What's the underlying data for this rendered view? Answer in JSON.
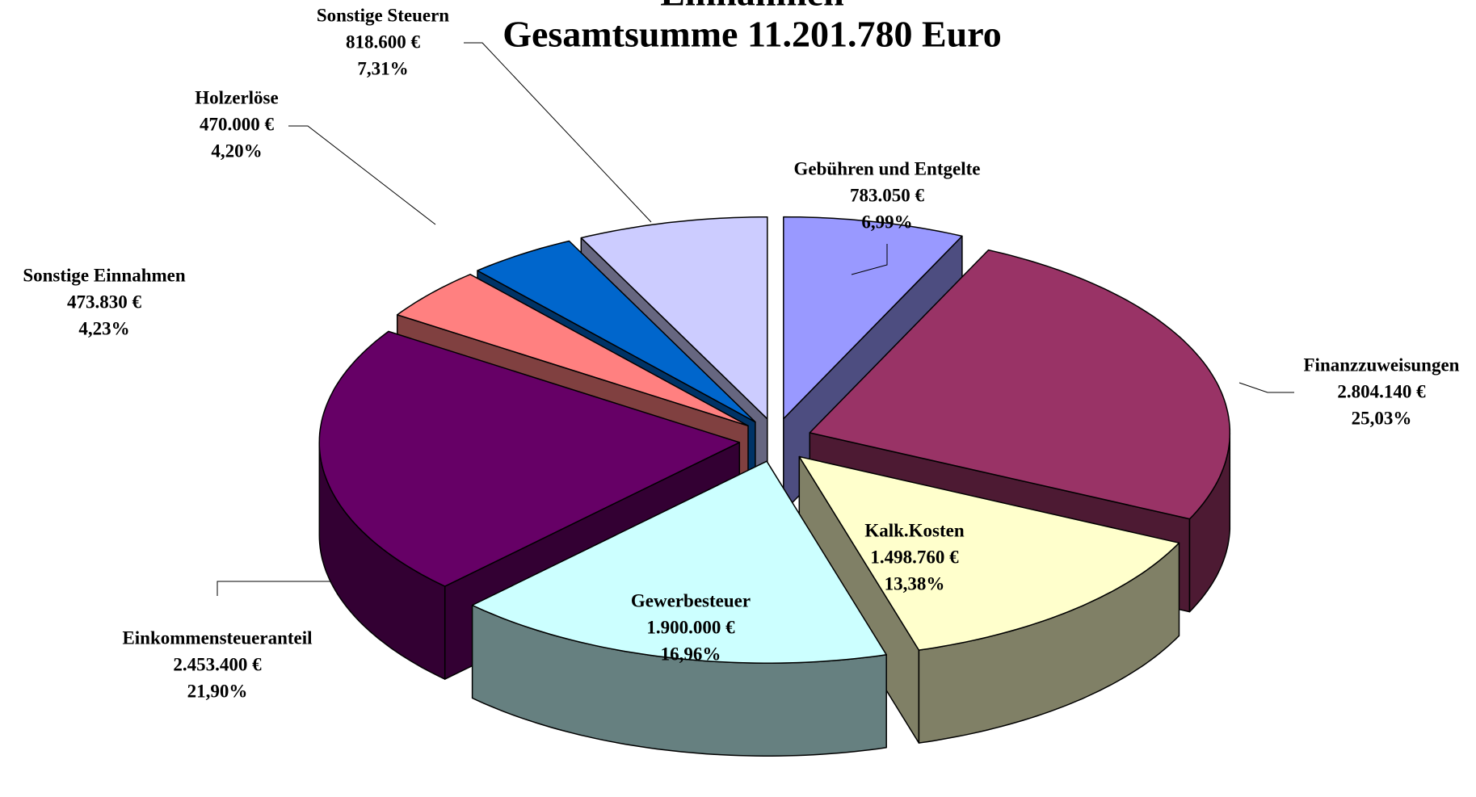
{
  "chart_data": {
    "type": "pie3d",
    "title": "Einnahmen",
    "subtitle": "Gesamtsumme 11.201.780 Euro",
    "categories": [
      "Gebühren und Entgelte",
      "Finanzzuweisungen",
      "Kalk.Kosten",
      "Gewerbesteuer",
      "Einkommensteueranteil",
      "Sonstige Einnahmen",
      "Holzerlöse",
      "Sonstige Steuern"
    ],
    "values": [
      783050,
      2804140,
      1498760,
      1900000,
      2453400,
      473830,
      470000,
      818600
    ],
    "value_labels": [
      "783.050 €",
      "2.804.140 €",
      "1.498.760 €",
      "1.900.000 €",
      "2.453.400 €",
      "473.830 €",
      "470.000 €",
      "818.600 €"
    ],
    "percents": [
      6.99,
      25.03,
      13.38,
      16.96,
      21.9,
      4.23,
      4.2,
      7.31
    ],
    "percent_labels": [
      "6,99%",
      "25,03%",
      "13,38%",
      "16,96%",
      "21,90%",
      "4,23%",
      "4,20%",
      "7,31%"
    ],
    "colors": [
      "#9999ff",
      "#993366",
      "#ffffcc",
      "#ccffff",
      "#660066",
      "#ff8080",
      "#0066cc",
      "#ccccff"
    ]
  }
}
